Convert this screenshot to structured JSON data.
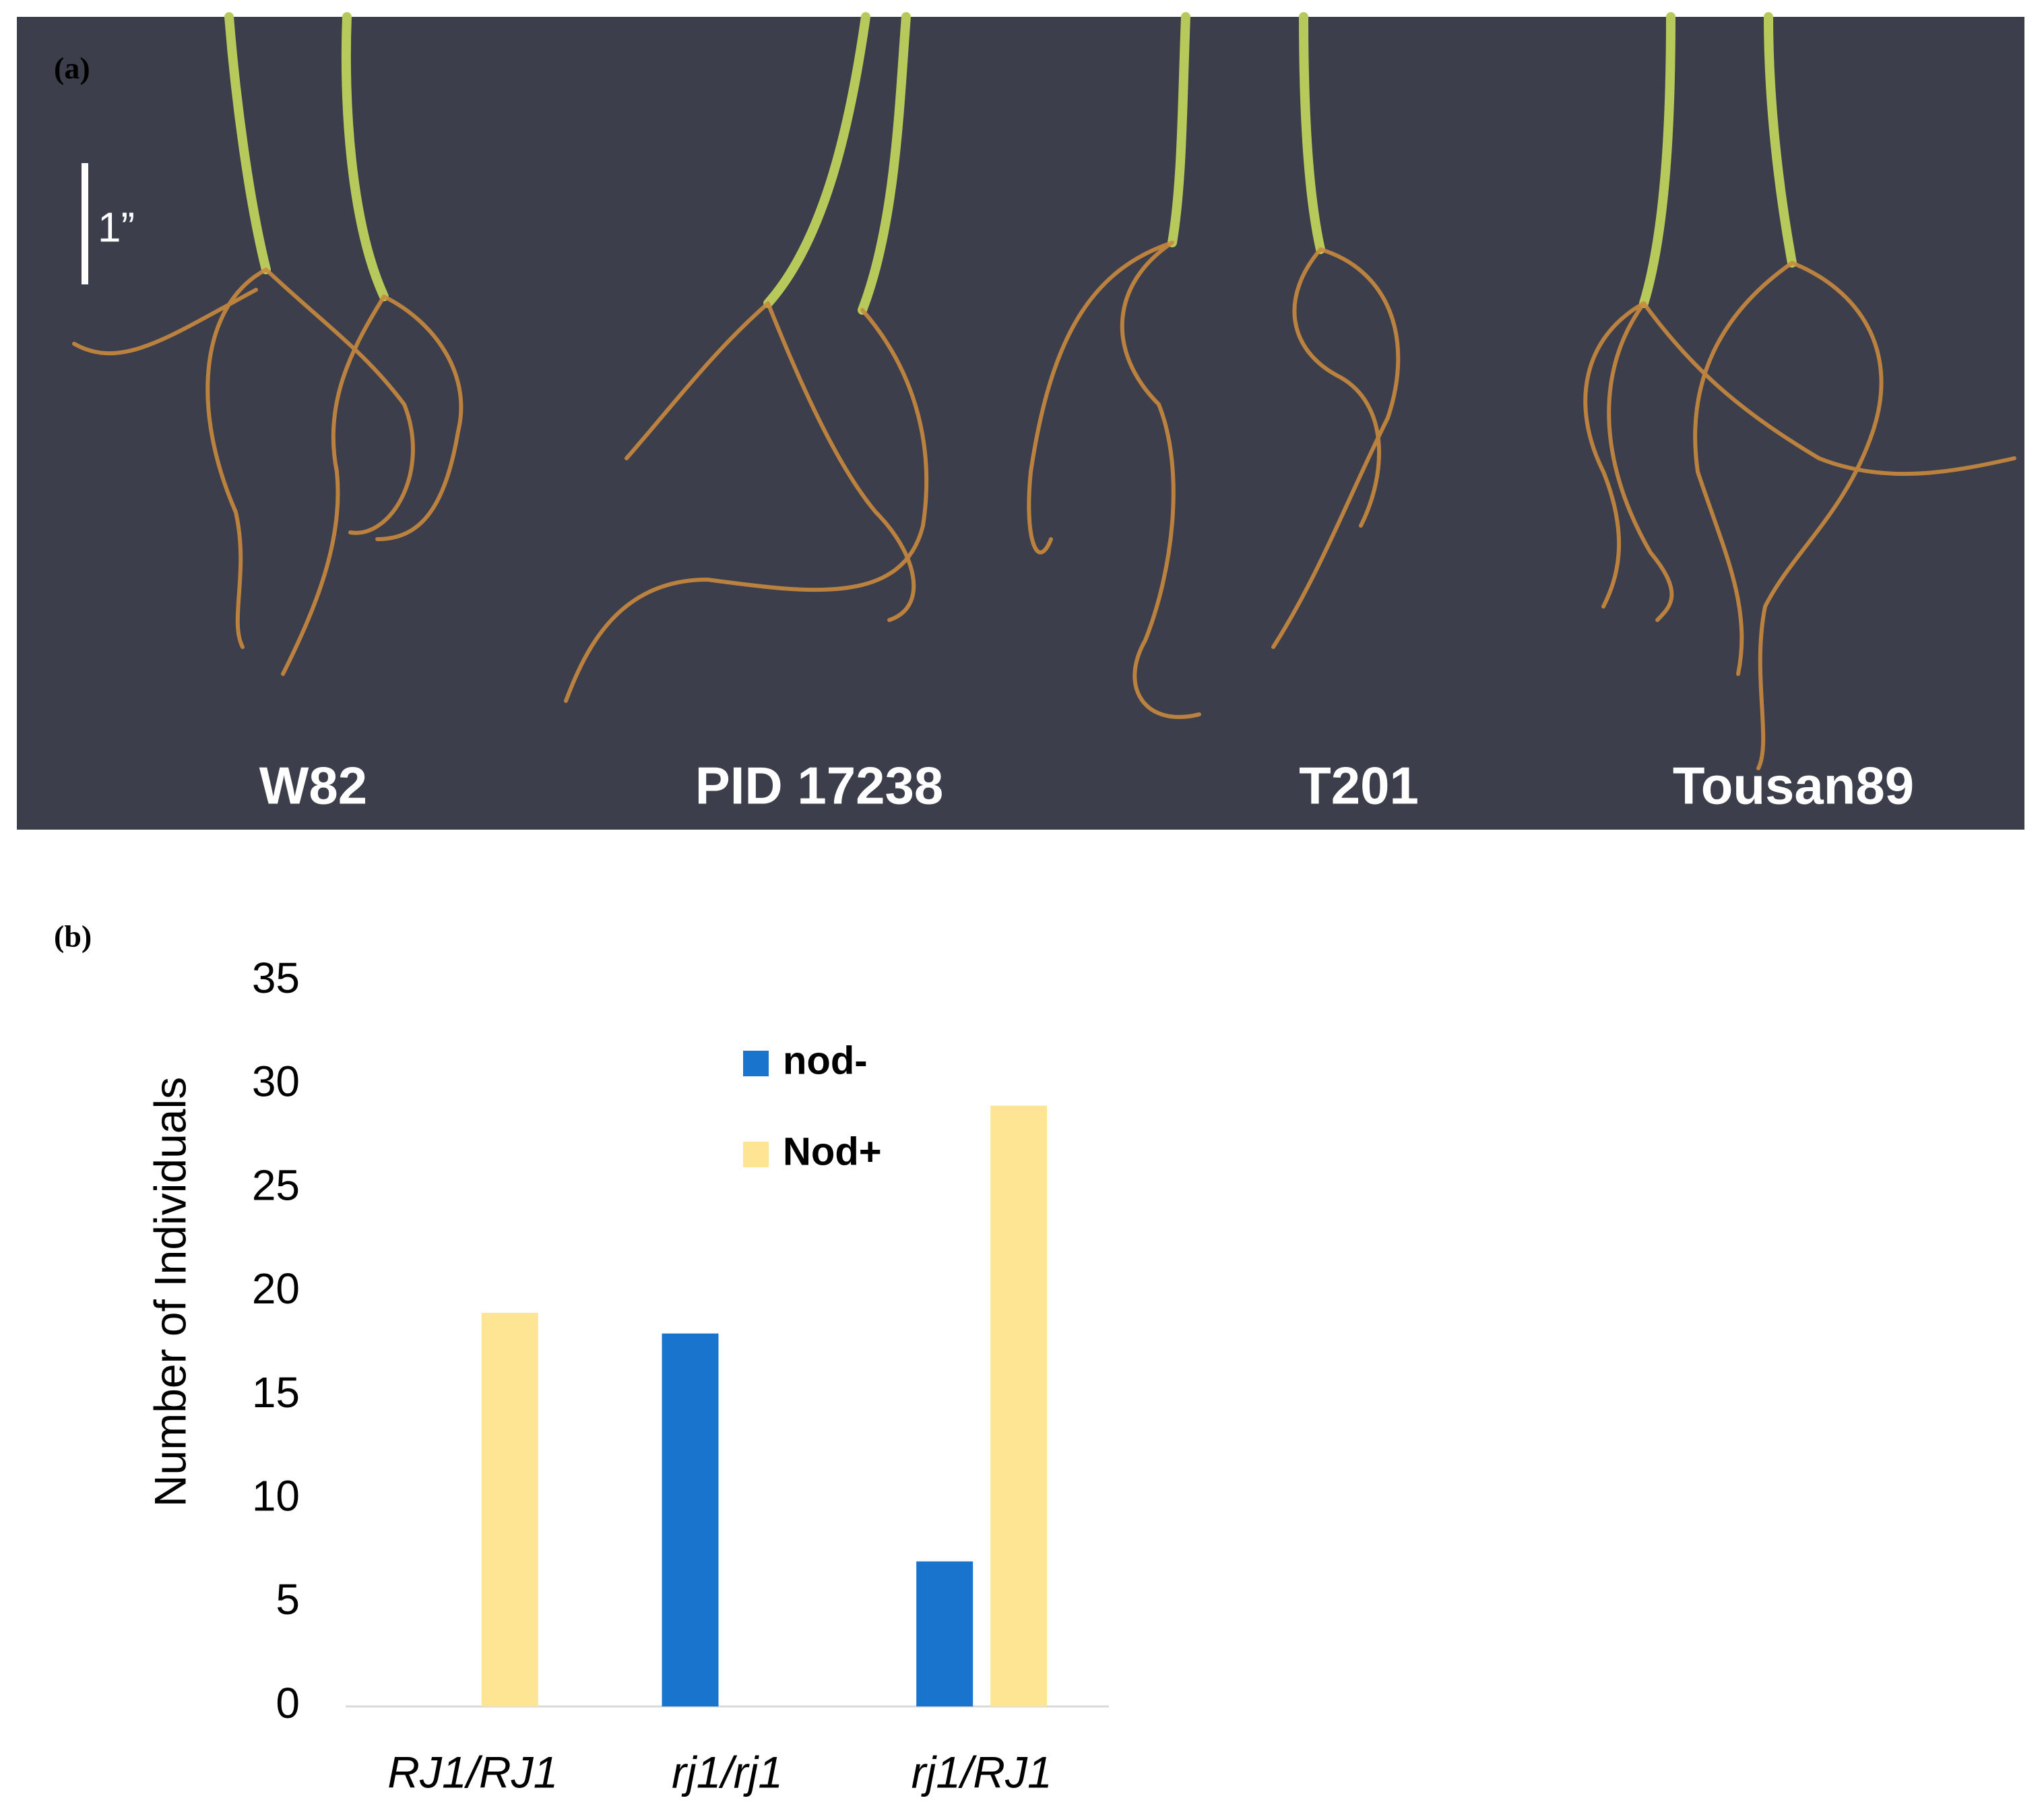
{
  "panel_a": {
    "label": "(a)",
    "scale_label": "1”",
    "samples": [
      "W82",
      "PID 17238",
      "T201",
      "Tousan89"
    ]
  },
  "chart_data": {
    "type": "bar",
    "panel_label": "(b)",
    "y_label": "Number of Individuals",
    "categories": [
      "RJ1/RJ1",
      "rj1/rj1",
      "rj1/RJ1"
    ],
    "series": [
      {
        "name": "nod-",
        "color": "#1874CD",
        "values": [
          0,
          18,
          7
        ]
      },
      {
        "name": "Nod+",
        "color": "#FDE594",
        "values": [
          19,
          0,
          29
        ]
      }
    ],
    "ylim": [
      0,
      35
    ],
    "yticks": [
      0,
      5,
      10,
      15,
      20,
      25,
      30,
      35
    ],
    "grid": false,
    "legend": "top"
  }
}
